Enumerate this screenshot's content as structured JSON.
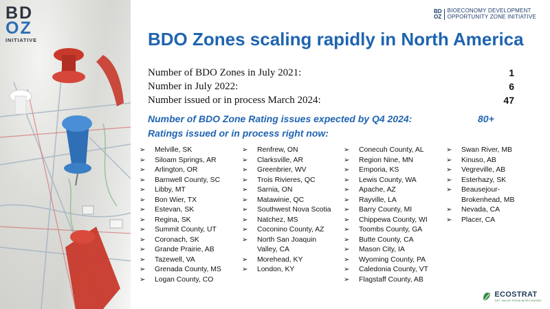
{
  "logo": {
    "line1": "BD",
    "line2": "OZ",
    "line3": "INITIATIVE"
  },
  "mini_brand": {
    "mark1": "BD",
    "mark2": "OZ",
    "line1": "BIOECONOMY DEVELOPMENT",
    "line2": "OPPORTUNITY ZONE INITIATIVE"
  },
  "title": "BDO Zones scaling rapidly in North America",
  "stats": [
    {
      "label": "Number of BDO Zones in July 2021:",
      "value": "1"
    },
    {
      "label": "Number in July 2022:",
      "value": "6"
    },
    {
      "label": "Number issued or in process March 2024:",
      "value": "47"
    }
  ],
  "expected": {
    "label": "Number of BDO Zone Rating issues expected by Q4 2024:",
    "value": "80+"
  },
  "in_process_label": "Ratings issued or in process right now:",
  "columns": [
    [
      "Melville, SK",
      "Siloam Springs, AR",
      "Arlington, OR",
      "Barnwell County, SC",
      "Libby, MT",
      "Bon Wier, TX",
      "Estevan, SK",
      "Regina, SK",
      "Summit County, UT",
      "Coronach, SK",
      "Grande Prairie, AB",
      "Tazewell, VA",
      "Grenada County, MS",
      "Logan County, CO"
    ],
    [
      "Renfrew, ON",
      "Clarksville, AR",
      "Greenbrier, WV",
      "Trois Rivieres, QC",
      "Sarnia, ON",
      "Matawinie, QC",
      "Southwest Nova Scotia",
      "Natchez, MS",
      "Coconino County, AZ",
      "North San Joaquin Valley, CA",
      "Morehead, KY",
      "London, KY"
    ],
    [
      "Conecuh County, AL",
      "Region Nine, MN",
      "Emporia, KS",
      "Lewis County, WA",
      "Apache, AZ",
      "Rayville, LA",
      "Barry County, MI",
      "Chippewa County, WI",
      "Toombs County, GA",
      "Butte County, CA",
      "Mason City, IA",
      "Wyoming County, PA",
      "Caledonia County, VT",
      "Flagstaff County, AB"
    ],
    [
      "Swan River, MB",
      "Kinuso, AB",
      "Vegreville, AB",
      "Esterhazy, SK",
      "Beausejour-Brokenhead, MB",
      "Nevada, CA",
      "Placer, CA"
    ]
  ],
  "footer_logo": {
    "name": "ECOSTRAT",
    "tagline": "GET VALUE FROM BIOECONOMY"
  },
  "colors": {
    "title_blue": "#1f64b0",
    "accent_red": "#c8392b",
    "pin_blue": "#2f6fb5"
  }
}
